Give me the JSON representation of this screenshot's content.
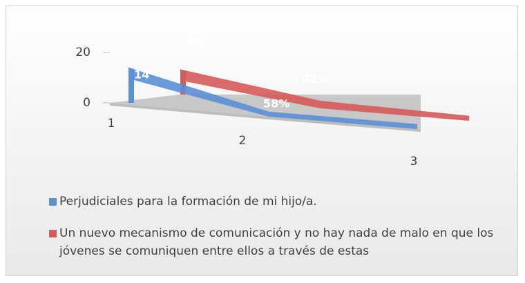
{
  "chart_data": {
    "type": "line3d",
    "categories": [
      "1",
      "2",
      "3"
    ],
    "series": [
      {
        "name": "Perjudiciales para la formación de mi hijo/a.",
        "color": "#5b8fd6",
        "values": [
          14,
          2,
          2
        ]
      },
      {
        "name": "Un nuevo mecanismo de comunicación y no hay nada de malo en que los jóvenes se comuniquen entre ellos a través de estas",
        "color": "#d65a5a",
        "values": [
          10,
          3,
          2
        ]
      }
    ],
    "annotations": [
      "14",
      "58%",
      "10",
      "42%"
    ],
    "ylim": [
      0,
      20
    ],
    "yticks": [
      0,
      20
    ]
  }
}
